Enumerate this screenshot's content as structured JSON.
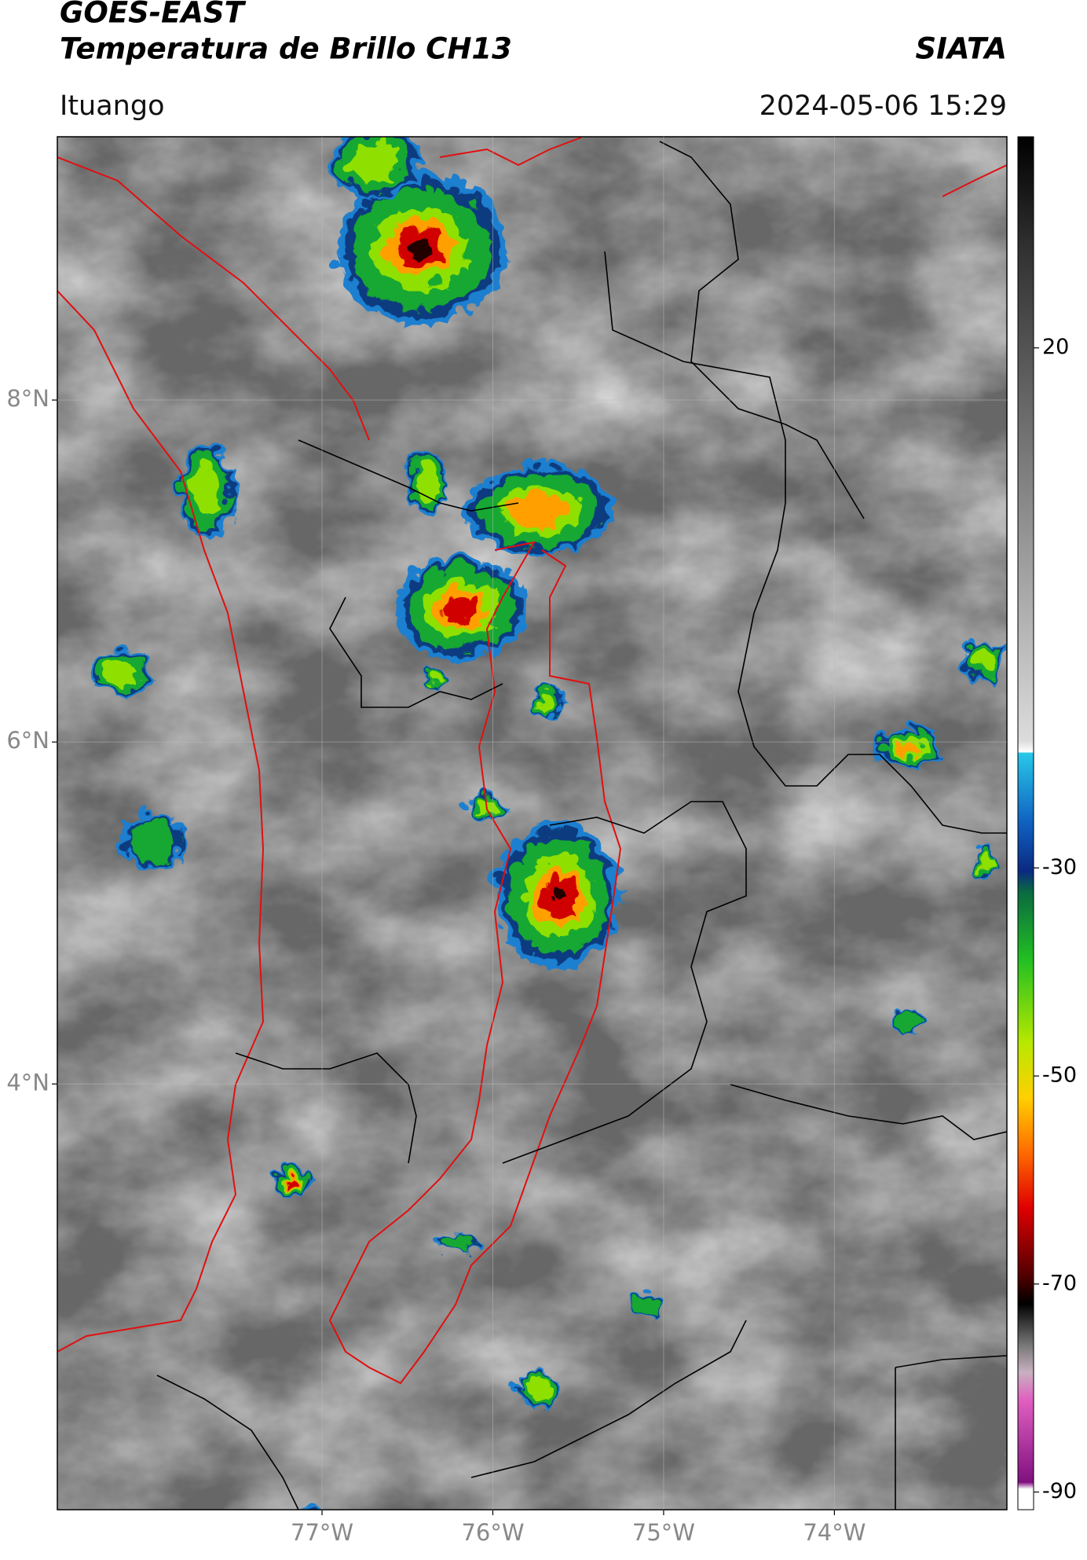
{
  "header": {
    "title": "GOES-EAST",
    "subtitle": "Temperatura de Brillo CH13",
    "source": "SIATA",
    "location": "Ituango",
    "timestamp": "2024-05-06 15:29"
  },
  "map": {
    "xlim": [
      -78.55,
      -72.99
    ],
    "ylim": [
      1.51,
      9.54
    ],
    "xticks": [
      {
        "value": -77,
        "label": "77°W"
      },
      {
        "value": -76,
        "label": "76°W"
      },
      {
        "value": -75,
        "label": "75°W"
      },
      {
        "value": -74,
        "label": "74°W"
      }
    ],
    "yticks": [
      {
        "value": 8,
        "label": "8°N"
      },
      {
        "value": 6,
        "label": "6°N"
      },
      {
        "value": 4,
        "label": "4°N"
      }
    ],
    "grid": true
  },
  "colorbar": {
    "lim": [
      -91.7,
      40.3
    ],
    "ticks": [
      20,
      -30,
      -50,
      -70,
      -90
    ]
  }
}
